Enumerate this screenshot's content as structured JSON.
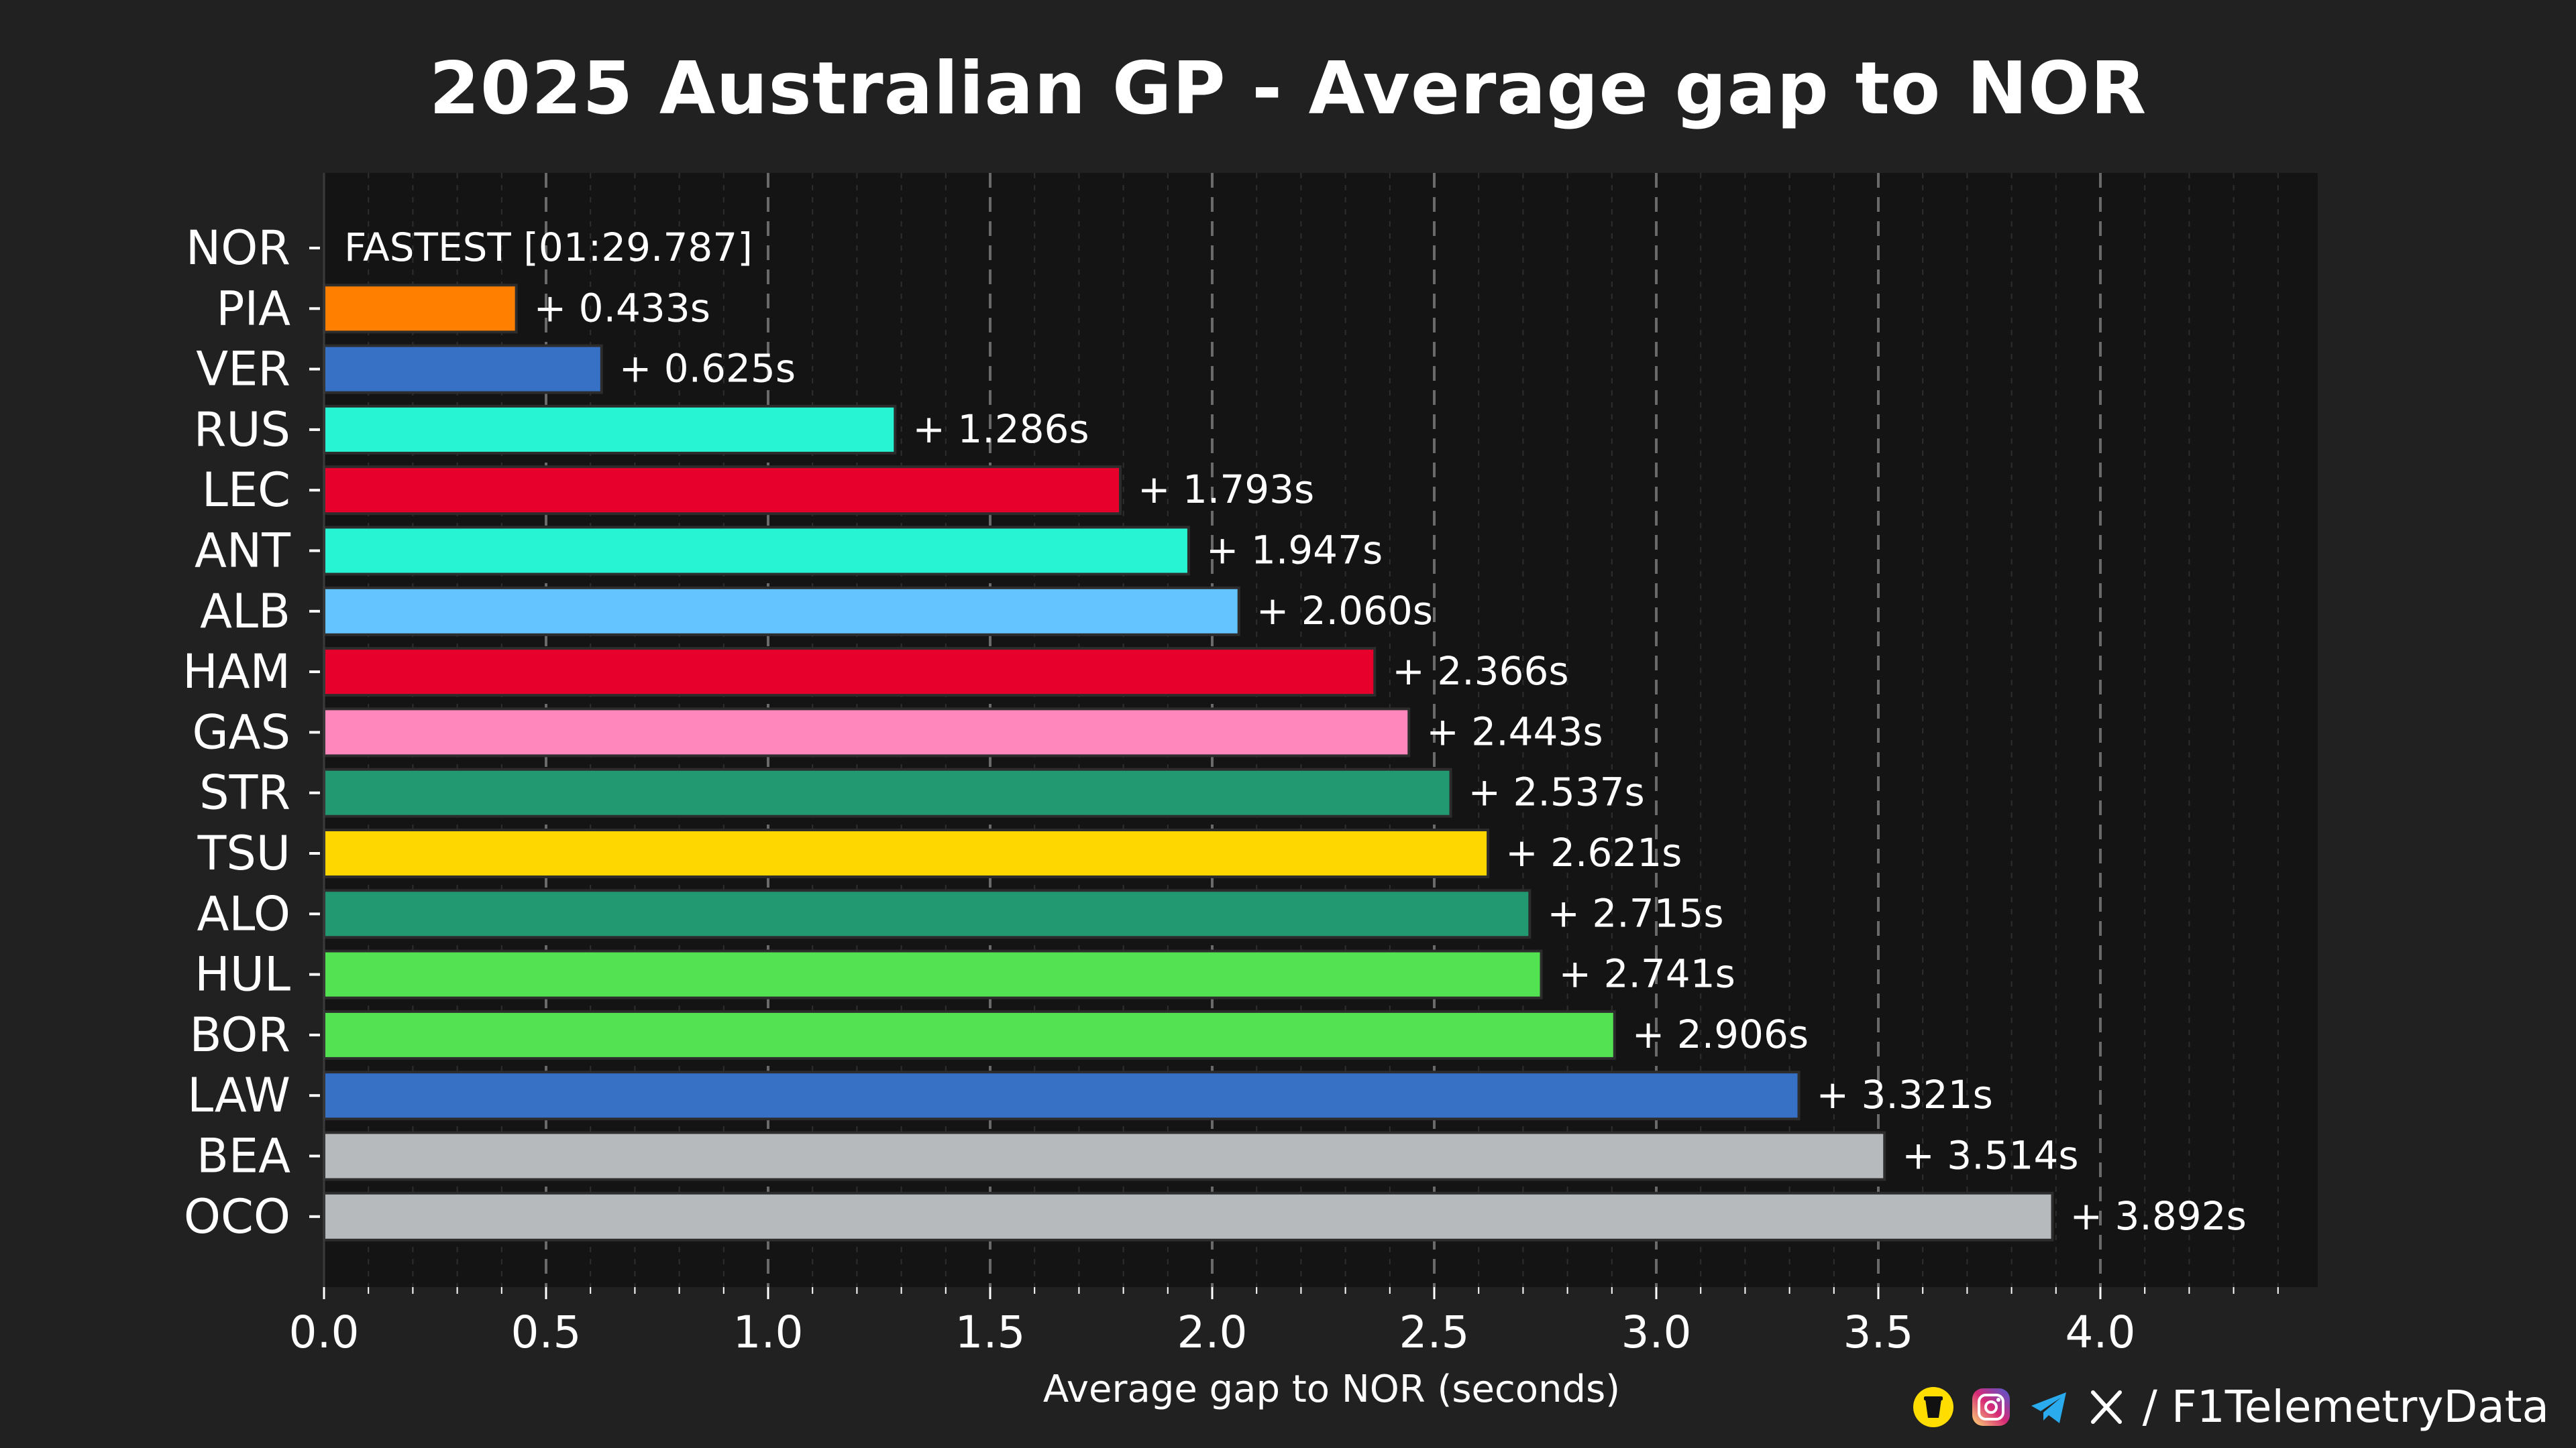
{
  "chart_data": {
    "type": "bar",
    "orientation": "horizontal",
    "title": "2025 Australian GP - Average gap to NOR",
    "xlabel": "Average gap to NOR (seconds)",
    "ylabel": "",
    "xlim": [
      0,
      4.5
    ],
    "xticks": [
      0.0,
      0.5,
      1.0,
      1.5,
      2.0,
      2.5,
      3.0,
      3.5,
      4.0
    ],
    "xtick_labels": [
      "0.0",
      "0.5",
      "1.0",
      "1.5",
      "2.0",
      "2.5",
      "3.0",
      "3.5",
      "4.0"
    ],
    "grid": true,
    "categories": [
      "NOR",
      "PIA",
      "VER",
      "RUS",
      "LEC",
      "ANT",
      "ALB",
      "HAM",
      "GAS",
      "STR",
      "TSU",
      "ALO",
      "HUL",
      "BOR",
      "LAW",
      "BEA",
      "OCO"
    ],
    "values": [
      0,
      0.433,
      0.625,
      1.286,
      1.793,
      1.947,
      2.06,
      2.366,
      2.443,
      2.537,
      2.621,
      2.715,
      2.741,
      2.906,
      3.321,
      3.514,
      3.892
    ],
    "value_labels": [
      "FASTEST [01:29.787]",
      "+ 0.433s",
      "+ 0.625s",
      "+ 1.286s",
      "+ 1.793s",
      "+ 1.947s",
      "+ 2.060s",
      "+ 2.366s",
      "+ 2.443s",
      "+ 2.537s",
      "+ 2.621s",
      "+ 2.715s",
      "+ 2.741s",
      "+ 2.906s",
      "+ 3.321s",
      "+ 3.514s",
      "+ 3.892s"
    ],
    "colors": [
      "#FF8000",
      "#FF8000",
      "#3671C6",
      "#27F4D2",
      "#E8002D",
      "#27F4D2",
      "#64C4FF",
      "#E8002D",
      "#FF87BC",
      "#229971",
      "#FFD700",
      "#229971",
      "#52E252",
      "#52E252",
      "#3671C6",
      "#B6BABD",
      "#B6BABD"
    ]
  },
  "watermark": "@F1TelemetryData",
  "footer": {
    "handle": "/ F1TelemetryData",
    "icons": [
      "buymeacoffee-icon",
      "instagram-icon",
      "telegram-icon",
      "x-icon"
    ]
  },
  "theme": {
    "background": "#212121",
    "plot_background": "#141414",
    "text": "#FFFFFF"
  }
}
